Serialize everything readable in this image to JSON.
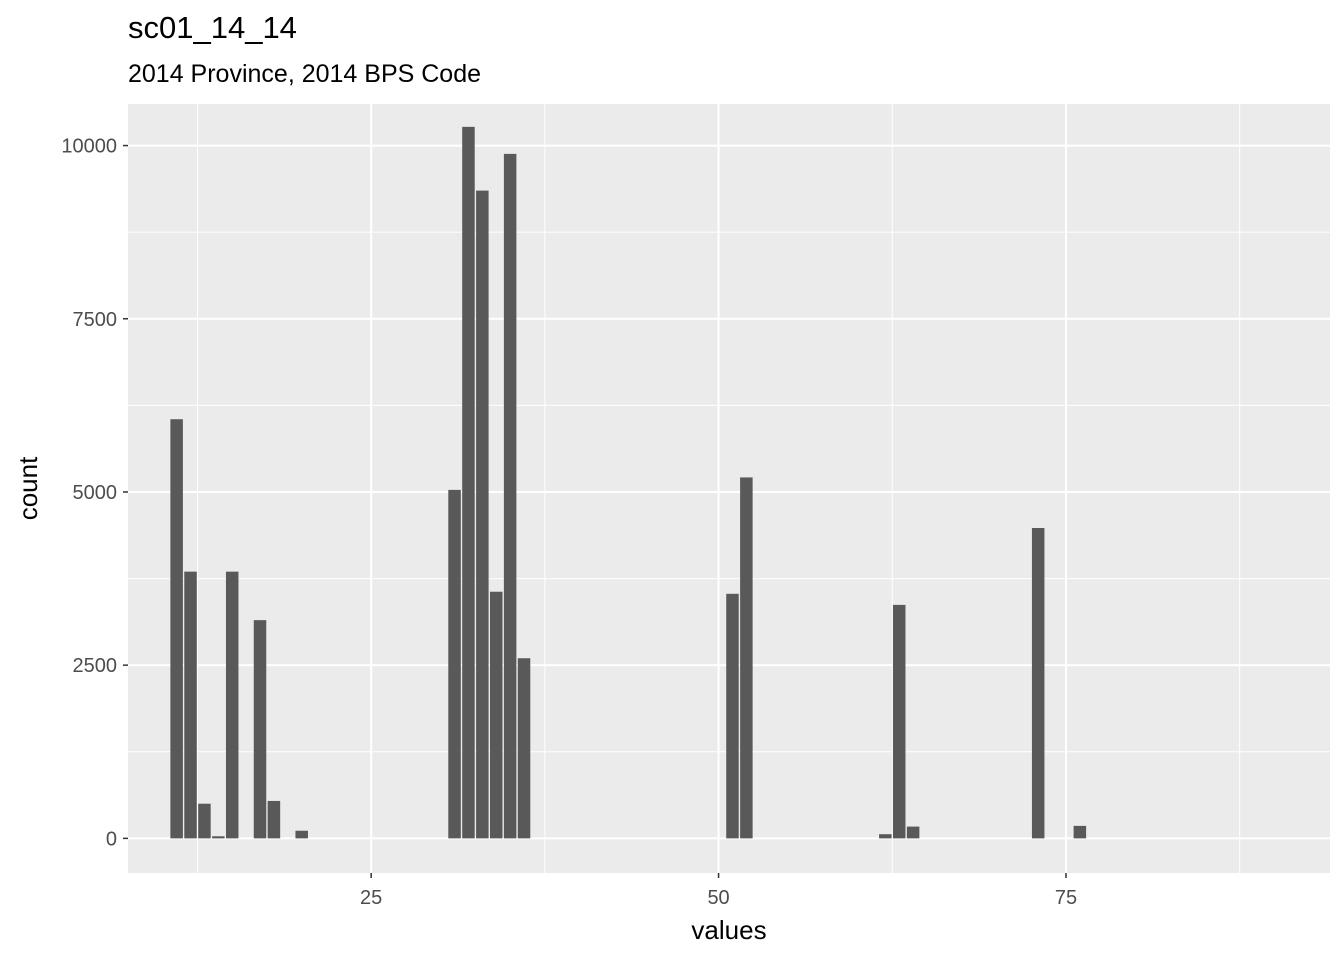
{
  "title": "sc01_14_14",
  "subtitle": "2014 Province, 2014 BPS Code",
  "chart_data": {
    "type": "bar",
    "xlabel": "values",
    "ylabel": "count",
    "xlim": [
      7.5,
      94
    ],
    "ylim": [
      -500,
      10600
    ],
    "x_ticks": [
      25,
      50,
      75
    ],
    "y_ticks": [
      0,
      2500,
      5000,
      7500,
      10000
    ],
    "x_minor": [
      12.5,
      37.5,
      62.5,
      87.5
    ],
    "y_minor": [
      1250,
      3750,
      6250,
      8750
    ],
    "grid": true,
    "background": "#ebebeb",
    "bar_color": "#595959",
    "bars": [
      {
        "x": 11,
        "y": 6050
      },
      {
        "x": 12,
        "y": 3850
      },
      {
        "x": 13,
        "y": 500
      },
      {
        "x": 14,
        "y": 30
      },
      {
        "x": 15,
        "y": 3850
      },
      {
        "x": 17,
        "y": 3150
      },
      {
        "x": 18,
        "y": 540
      },
      {
        "x": 20,
        "y": 110
      },
      {
        "x": 31,
        "y": 5030
      },
      {
        "x": 32,
        "y": 10270
      },
      {
        "x": 33,
        "y": 9350
      },
      {
        "x": 34,
        "y": 3560
      },
      {
        "x": 35,
        "y": 9880
      },
      {
        "x": 36,
        "y": 2600
      },
      {
        "x": 51,
        "y": 3530
      },
      {
        "x": 52,
        "y": 5210
      },
      {
        "x": 62,
        "y": 60
      },
      {
        "x": 63,
        "y": 3370
      },
      {
        "x": 64,
        "y": 170
      },
      {
        "x": 73,
        "y": 4480
      },
      {
        "x": 76,
        "y": 180
      }
    ]
  }
}
